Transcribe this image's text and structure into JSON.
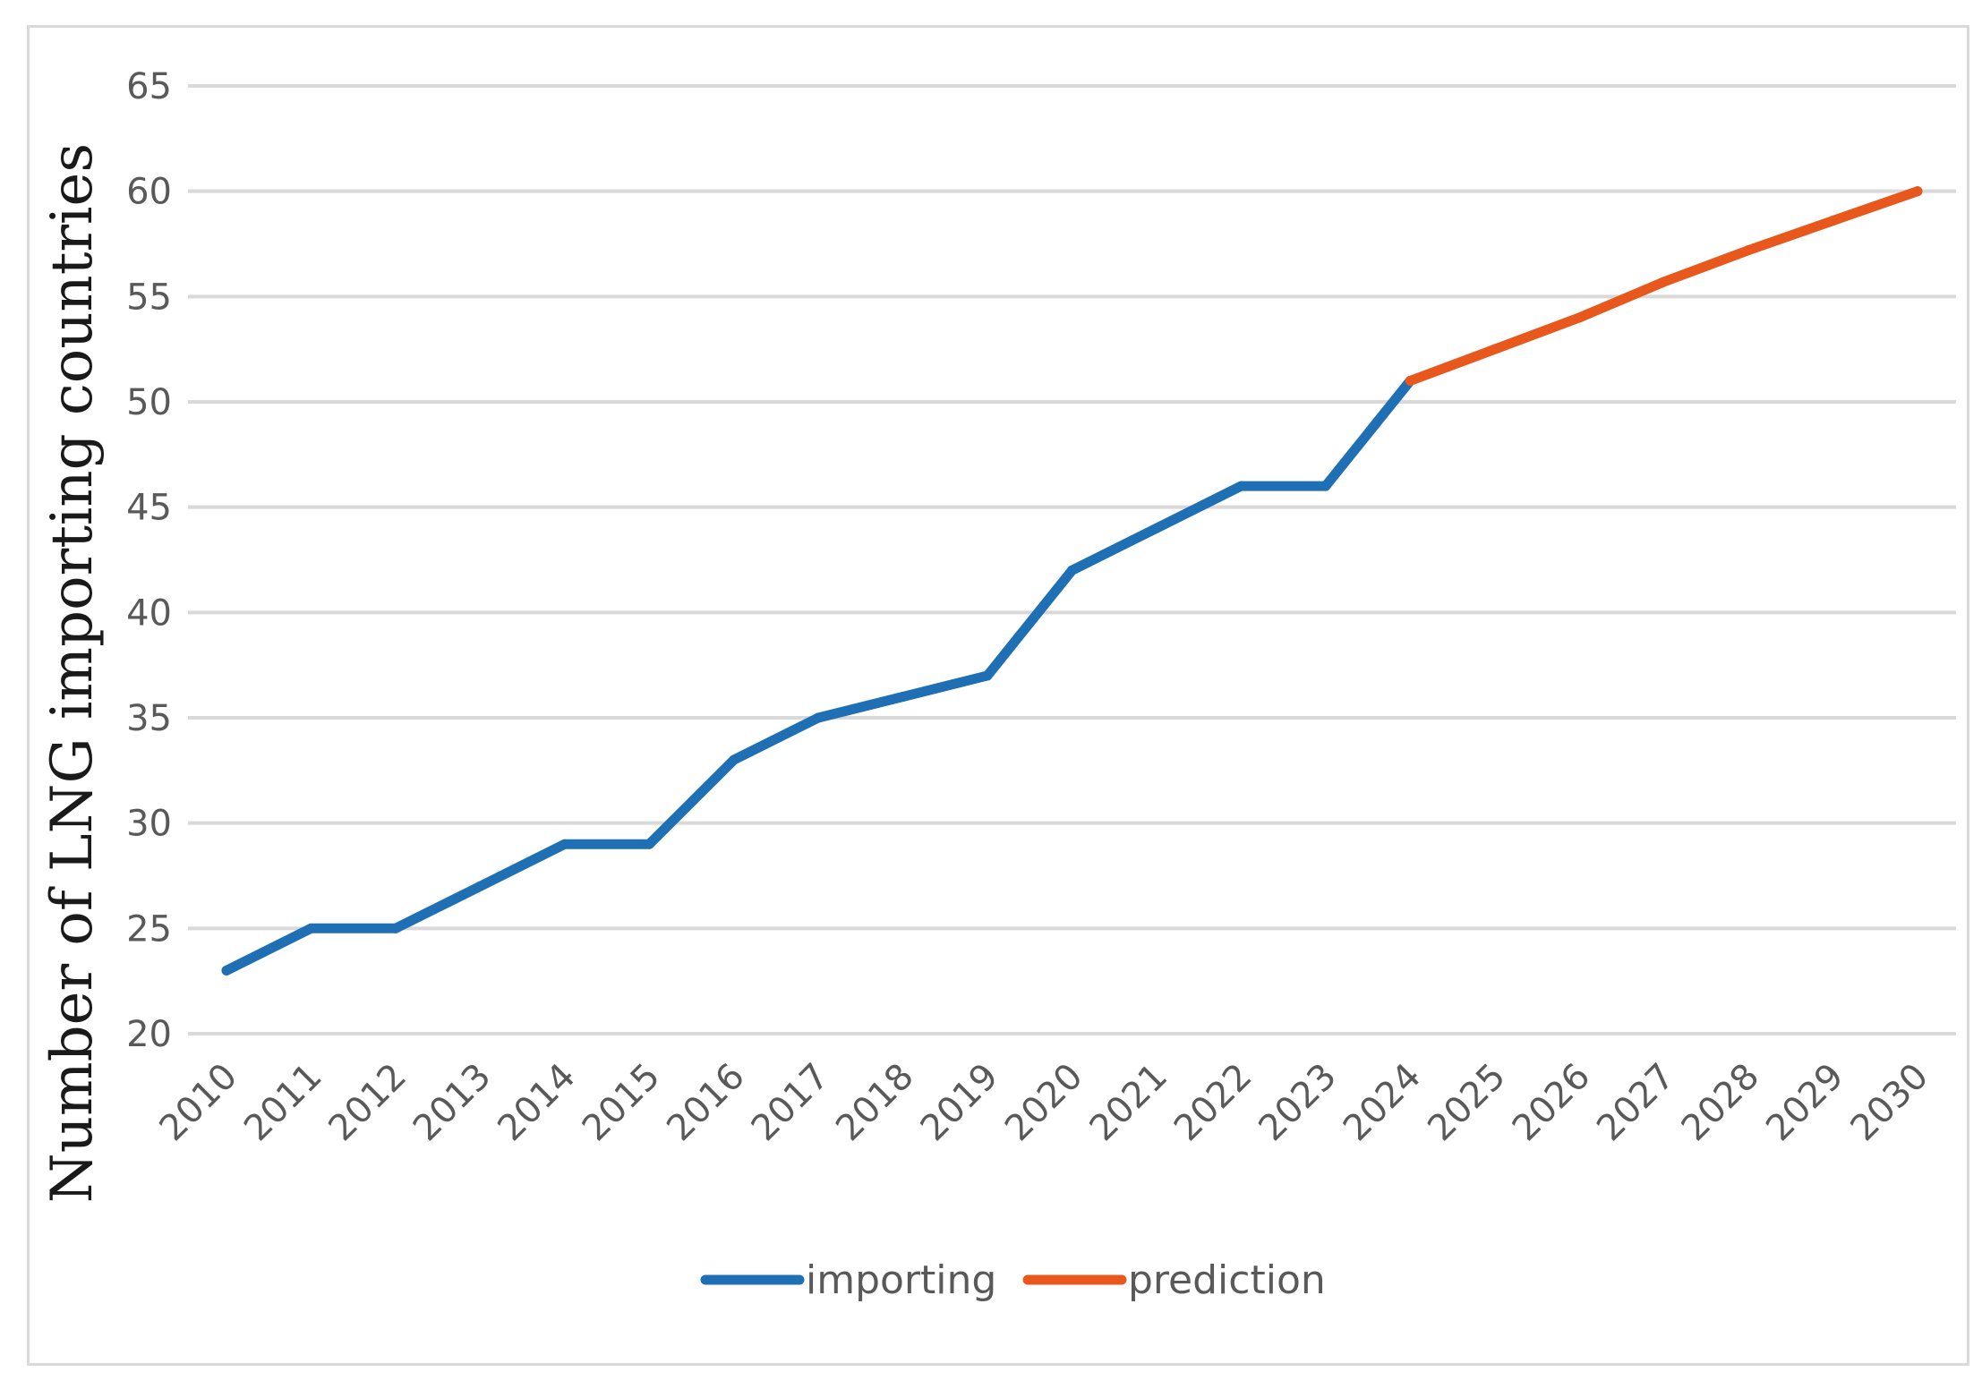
{
  "chart_data": {
    "type": "line",
    "title": "",
    "xlabel": "",
    "ylabel": "Number of LNG importing countries",
    "categories": [
      "2010",
      "2011",
      "2012",
      "2013",
      "2014",
      "2015",
      "2016",
      "2017",
      "2018",
      "2019",
      "2020",
      "2021",
      "2022",
      "2023",
      "2024",
      "2025",
      "2026",
      "2027",
      "2028",
      "2029",
      "2030"
    ],
    "ylim": [
      20,
      65
    ],
    "yticks": [
      20,
      25,
      30,
      35,
      40,
      45,
      50,
      55,
      60,
      65
    ],
    "grid": true,
    "legend_position": "bottom",
    "series": [
      {
        "name": "importing",
        "color": "#1f6fb4",
        "x": [
          "2010",
          "2011",
          "2012",
          "2013",
          "2014",
          "2015",
          "2016",
          "2017",
          "2018",
          "2019",
          "2020",
          "2021",
          "2022",
          "2023",
          "2024"
        ],
        "values": [
          23,
          25,
          25,
          27,
          29,
          29,
          33,
          35,
          36,
          37,
          42,
          44,
          46,
          46,
          51
        ]
      },
      {
        "name": "prediction",
        "color": "#e8571c",
        "x": [
          "2024",
          "2025",
          "2026",
          "2027",
          "2028",
          "2029",
          "2030"
        ],
        "values": [
          51,
          52.5,
          54,
          55.7,
          57.2,
          58.6,
          60
        ]
      }
    ]
  }
}
